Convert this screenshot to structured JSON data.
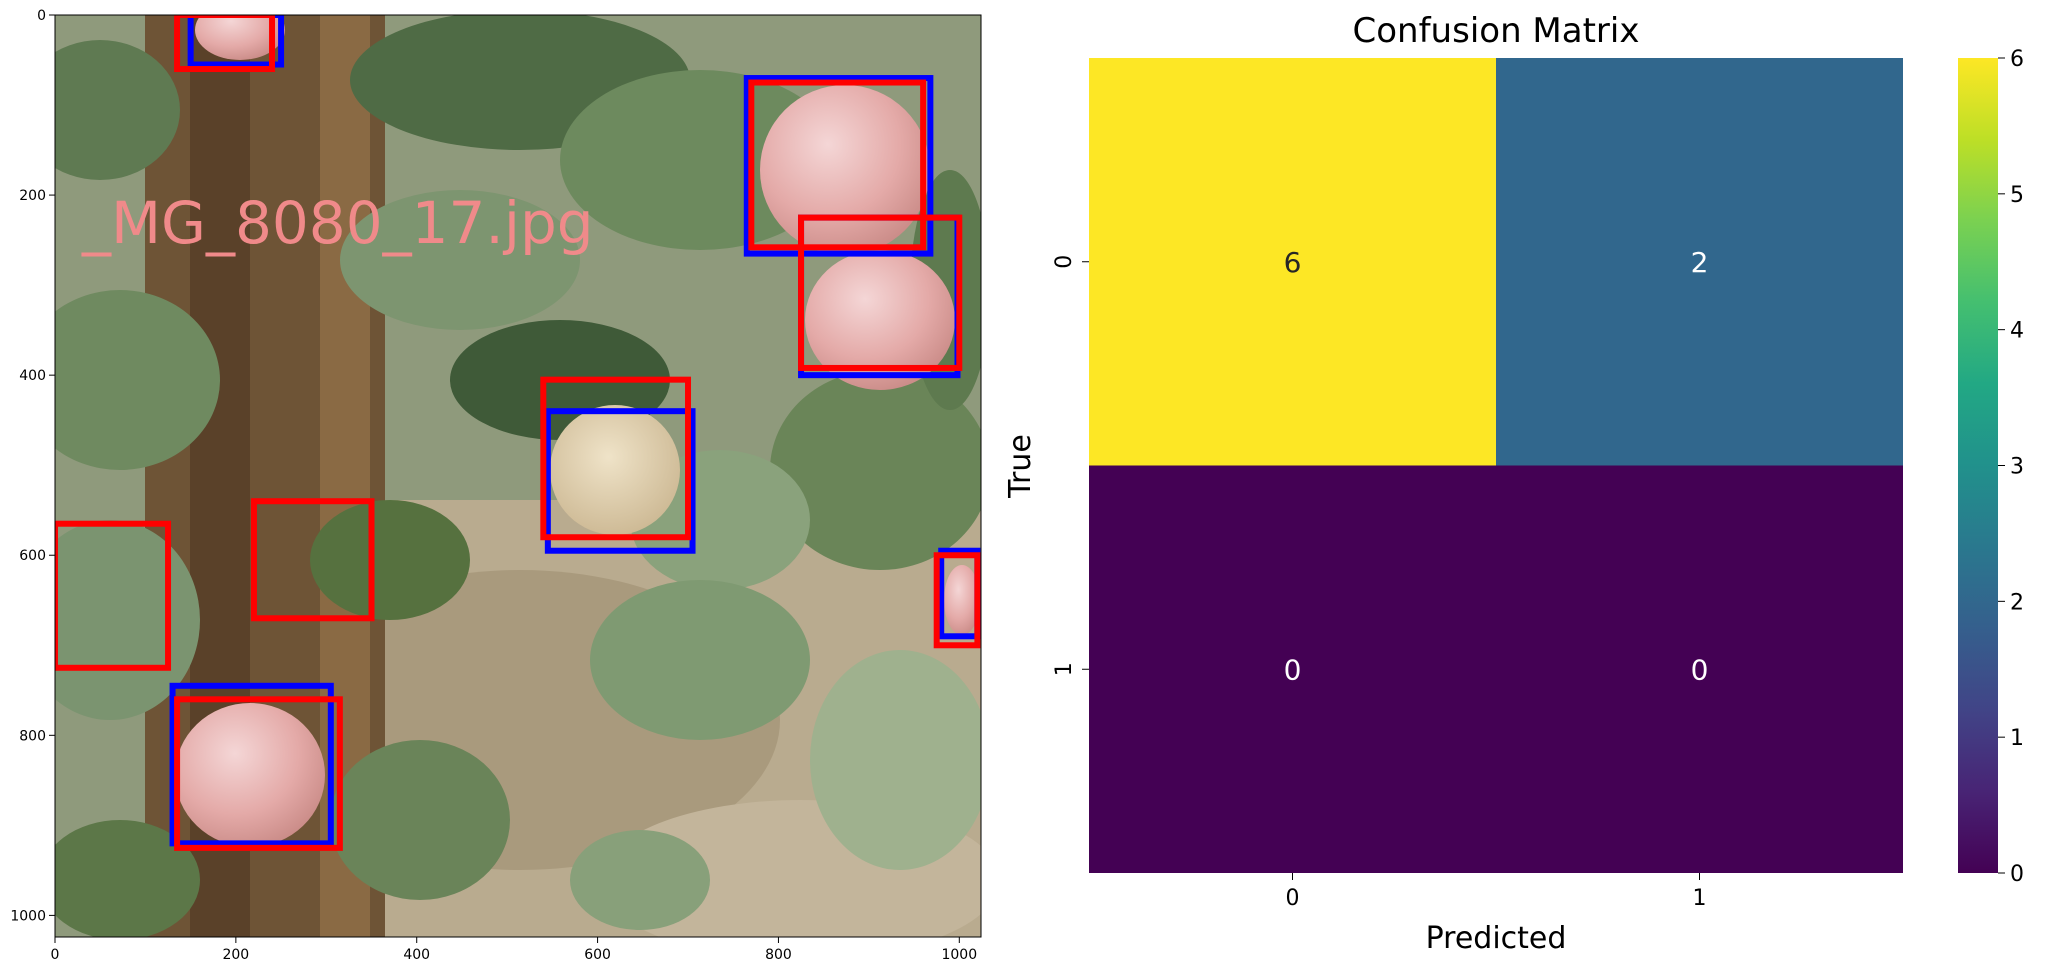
{
  "image_panel": {
    "overlay_text": "_MG_8080_17.jpg",
    "x_ticks": [
      0,
      200,
      400,
      600,
      800,
      1000
    ],
    "y_ticks": [
      0,
      200,
      400,
      600,
      800,
      1000
    ],
    "extent": [
      0,
      1024
    ],
    "colors": {
      "ground_truth_box": "#0000ff",
      "predicted_box": "#ff0000",
      "overlay_text": "#f08a8a"
    },
    "ground_truth_boxes": [
      [
        150,
        0,
        250,
        55
      ],
      [
        765,
        70,
        968,
        265
      ],
      [
        825,
        225,
        998,
        400
      ],
      [
        545,
        440,
        705,
        595
      ],
      [
        130,
        745,
        305,
        920
      ],
      [
        980,
        595,
        1020,
        690
      ]
    ],
    "predicted_boxes": [
      [
        135,
        0,
        240,
        60
      ],
      [
        770,
        75,
        960,
        258
      ],
      [
        825,
        225,
        1000,
        392
      ],
      [
        540,
        405,
        700,
        580
      ],
      [
        0,
        565,
        125,
        725
      ],
      [
        220,
        540,
        350,
        670
      ],
      [
        135,
        760,
        315,
        925
      ],
      [
        975,
        600,
        1020,
        700
      ]
    ]
  },
  "chart_data": {
    "type": "heatmap",
    "title": "Confusion Matrix",
    "xlabel": "Predicted",
    "ylabel": "True",
    "x_categories": [
      "0",
      "1"
    ],
    "y_categories": [
      "0",
      "1"
    ],
    "values": [
      [
        6,
        2
      ],
      [
        0,
        0
      ]
    ],
    "annotations": [
      "6",
      "2",
      "0",
      "0"
    ],
    "colorbar": {
      "min": 0,
      "max": 6,
      "ticks": [
        "0",
        "1",
        "2",
        "3",
        "4",
        "5",
        "6"
      ]
    },
    "colormap": "viridis"
  }
}
